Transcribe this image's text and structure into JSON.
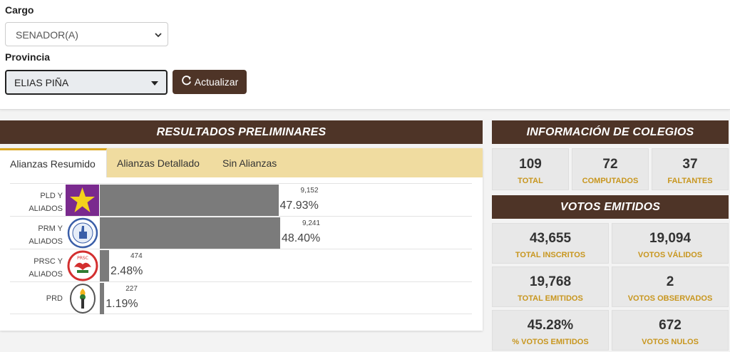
{
  "filters": {
    "cargo_label": "Cargo",
    "cargo_value": "SENADOR(A)",
    "provincia_label": "Provincia",
    "provincia_value": "ELIAS PIÑA",
    "update_button": "Actualizar"
  },
  "results": {
    "title": "RESULTADOS PRELIMINARES",
    "tabs": [
      {
        "label": "Alianzas Resumido",
        "active": true
      },
      {
        "label": "Alianzas Detallado",
        "active": false
      },
      {
        "label": "Sin Alianzas",
        "active": false
      }
    ]
  },
  "chart_data": {
    "type": "bar",
    "categories": [
      "PLD Y ALIADOS",
      "PRM Y ALIADOS",
      "PRSC Y ALIADOS",
      "PRD"
    ],
    "series": [
      {
        "values": [
          9152,
          9241,
          474,
          227
        ]
      }
    ],
    "votes_labels": [
      "9,152",
      "9,241",
      "474",
      "227"
    ],
    "percent_labels": [
      "47.93%",
      "48.40%",
      "2.48%",
      "1.19%"
    ],
    "percent_values": [
      47.93,
      48.4,
      2.48,
      1.19
    ],
    "party_lines": [
      [
        "PLD Y",
        "ALIADOS"
      ],
      [
        "PRM Y",
        "ALIADOS"
      ],
      [
        "PRSC Y",
        "ALIADOS"
      ],
      [
        "PRD"
      ]
    ],
    "logo_icons": [
      "pld-star-icon",
      "prm-hand-icon",
      "prsc-eagle-icon",
      "prd-torch-icon"
    ],
    "logo_label_prsc": "PRSC",
    "bar_color": "#7b7b7b"
  },
  "colegios": {
    "title": "INFORMACIÓN DE COLEGIOS",
    "items": [
      {
        "value": "109",
        "label": "TOTAL"
      },
      {
        "value": "72",
        "label": "COMPUTADOS"
      },
      {
        "value": "37",
        "label": "FALTANTES"
      }
    ]
  },
  "votos": {
    "title": "VOTOS EMITIDOS",
    "items": [
      {
        "value": "43,655",
        "label": "TOTAL INSCRITOS"
      },
      {
        "value": "19,094",
        "label": "VOTOS VÁLIDOS"
      },
      {
        "value": "19,768",
        "label": "TOTAL EMITIDOS"
      },
      {
        "value": "2",
        "label": "VOTOS OBSERVADOS"
      },
      {
        "value": "45.28%",
        "label": "% VOTOS EMITIDOS"
      },
      {
        "value": "672",
        "label": "VOTOS NULOS"
      }
    ]
  },
  "colors": {
    "brand_brown": "#4e3427",
    "tab_bar": "#f0dca0",
    "accent_gold": "#c8961e",
    "pld_purple": "#7a2a8e",
    "pld_star": "#f4d21c"
  }
}
